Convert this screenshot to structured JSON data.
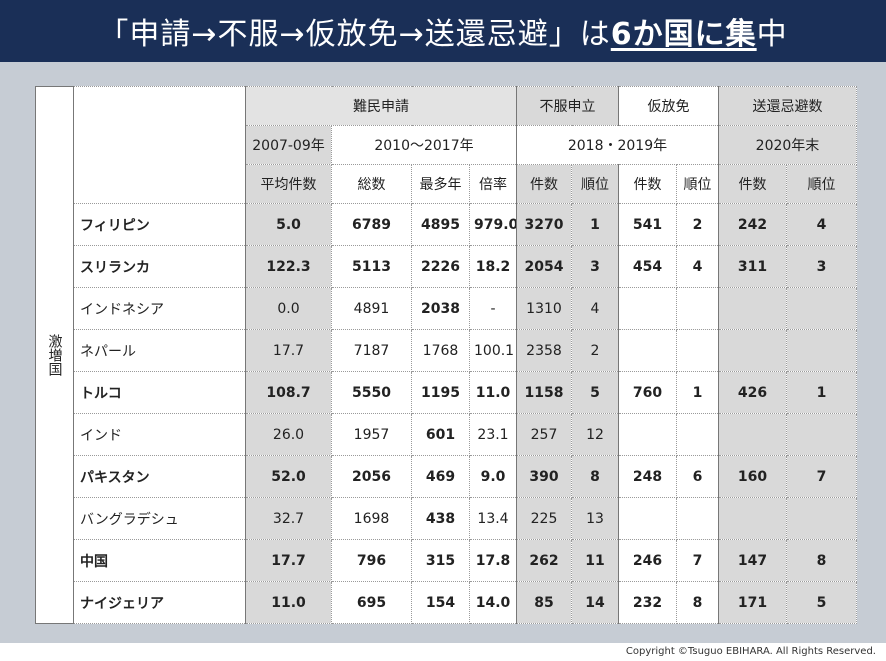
{
  "title": {
    "part1": "「申請→不服→仮放免→送還忌避」は",
    "part2": "6か国に集",
    "part3": "中"
  },
  "table": {
    "side_label": "激増国",
    "groups": {
      "refugee": "難民申請",
      "appeal": "不服申立",
      "provisional": "仮放免",
      "deport": "送還忌避数"
    },
    "periods": {
      "p1": "2007-09年",
      "p2": "2010〜2017年",
      "p3": "2018・2019年",
      "p4": "2020年末"
    },
    "cols": {
      "avg": "平均件数",
      "total": "総数",
      "maxyear": "最多年",
      "ratio": "倍率",
      "a_count": "件数",
      "a_rank": "順位",
      "p_count": "件数",
      "p_rank": "順位",
      "d_count": "件数",
      "d_rank": "順位"
    },
    "rows": [
      {
        "name": "フィリピン",
        "avg": "5.0",
        "total": "6789",
        "maxyear": "4895",
        "ratio": "979.0",
        "a_count": "3270",
        "a_rank": "1",
        "p_count": "541",
        "p_rank": "2",
        "d_count": "242",
        "d_rank": "4"
      },
      {
        "name": "スリランカ",
        "avg": "122.3",
        "total": "5113",
        "maxyear": "2226",
        "ratio": "18.2",
        "a_count": "2054",
        "a_rank": "3",
        "p_count": "454",
        "p_rank": "4",
        "d_count": "311",
        "d_rank": "3"
      },
      {
        "name": "インドネシア",
        "avg": "0.0",
        "total": "4891",
        "maxyear": "2038",
        "ratio": "-",
        "a_count": "1310",
        "a_rank": "4",
        "p_count": "",
        "p_rank": "",
        "d_count": "",
        "d_rank": ""
      },
      {
        "name": "ネパール",
        "avg": "17.7",
        "total": "7187",
        "maxyear": "1768",
        "ratio": "100.1",
        "a_count": "2358",
        "a_rank": "2",
        "p_count": "",
        "p_rank": "",
        "d_count": "",
        "d_rank": ""
      },
      {
        "name": "トルコ",
        "avg": "108.7",
        "total": "5550",
        "maxyear": "1195",
        "ratio": "11.0",
        "a_count": "1158",
        "a_rank": "5",
        "p_count": "760",
        "p_rank": "1",
        "d_count": "426",
        "d_rank": "1"
      },
      {
        "name": "インド",
        "avg": "26.0",
        "total": "1957",
        "maxyear": "601",
        "ratio": "23.1",
        "a_count": "257",
        "a_rank": "12",
        "p_count": "",
        "p_rank": "",
        "d_count": "",
        "d_rank": ""
      },
      {
        "name": "パキスタン",
        "avg": "52.0",
        "total": "2056",
        "maxyear": "469",
        "ratio": "9.0",
        "a_count": "390",
        "a_rank": "8",
        "p_count": "248",
        "p_rank": "6",
        "d_count": "160",
        "d_rank": "7"
      },
      {
        "name": "バングラデシュ",
        "avg": "32.7",
        "total": "1698",
        "maxyear": "438",
        "ratio": "13.4",
        "a_count": "225",
        "a_rank": "13",
        "p_count": "",
        "p_rank": "",
        "d_count": "",
        "d_rank": ""
      },
      {
        "name": "中国",
        "avg": "17.7",
        "total": "796",
        "maxyear": "315",
        "ratio": "17.8",
        "a_count": "262",
        "a_rank": "11",
        "p_count": "246",
        "p_rank": "7",
        "d_count": "147",
        "d_rank": "8"
      },
      {
        "name": "ナイジェリア",
        "avg": "11.0",
        "total": "695",
        "maxyear": "154",
        "ratio": "14.0",
        "a_count": "85",
        "a_rank": "14",
        "p_count": "232",
        "p_rank": "8",
        "d_count": "171",
        "d_rank": "5"
      }
    ]
  },
  "footer": "Copyright ©Tsuguo EBIHARA.  All Rights Reserved."
}
